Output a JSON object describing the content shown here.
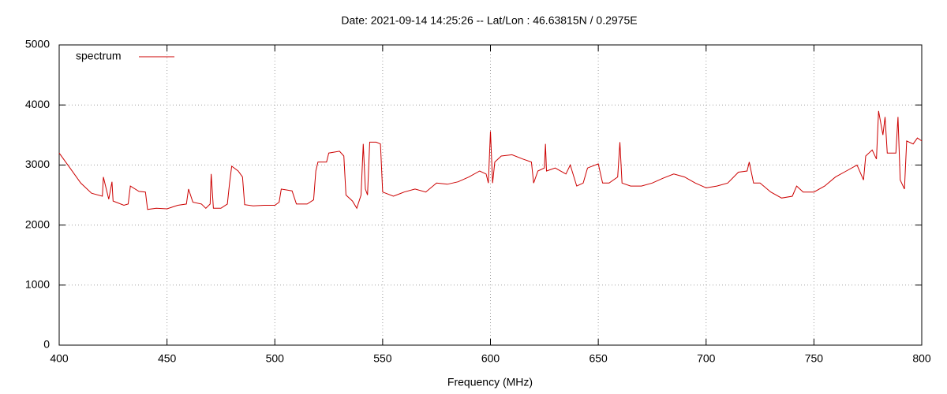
{
  "chart_data": {
    "type": "line",
    "title": "Date: 2021-09-14 14:25:26  --  Lat/Lon : 46.63815N / 0.2975E",
    "x_label": "Frequency (MHz)",
    "x": [
      400,
      405,
      410,
      415,
      420,
      420.5,
      423,
      424.5,
      425,
      430,
      432,
      433,
      437,
      440,
      441,
      445,
      450,
      455,
      459,
      460,
      462,
      466,
      468,
      470,
      470.5,
      471.5,
      475,
      478,
      479,
      480,
      483,
      485,
      486,
      490,
      495,
      500,
      502,
      503,
      508,
      510,
      515,
      518,
      519,
      520,
      524,
      525,
      530,
      532,
      533,
      536,
      538,
      540,
      541,
      542,
      543,
      544,
      547,
      549,
      550,
      555,
      560,
      565,
      570,
      575,
      580,
      585,
      590,
      595,
      598,
      599,
      600,
      601,
      602,
      605,
      610,
      615,
      619,
      620,
      622,
      625,
      625.5,
      626,
      630,
      635,
      637,
      640,
      643,
      645,
      650,
      652,
      655,
      659,
      660,
      661,
      665,
      670,
      675,
      680,
      685,
      690,
      695,
      700,
      705,
      710,
      715,
      719,
      720,
      722,
      725,
      730,
      735,
      740,
      742,
      745,
      750,
      755,
      760,
      765,
      770,
      773,
      774,
      777,
      779,
      780,
      782,
      783,
      784,
      788,
      789,
      790,
      792,
      793,
      796,
      798,
      800
    ],
    "series": [
      {
        "name": "spectrum",
        "color": "#cc0000",
        "values": [
          3200,
          2950,
          2700,
          2530,
          2480,
          2800,
          2430,
          2720,
          2400,
          2330,
          2350,
          2650,
          2560,
          2550,
          2260,
          2280,
          2270,
          2330,
          2350,
          2600,
          2380,
          2350,
          2280,
          2350,
          2850,
          2280,
          2280,
          2350,
          2700,
          2980,
          2900,
          2800,
          2340,
          2320,
          2330,
          2330,
          2380,
          2600,
          2570,
          2350,
          2350,
          2420,
          2900,
          3050,
          3050,
          3200,
          3230,
          3150,
          2500,
          2400,
          2280,
          2500,
          3350,
          2600,
          2500,
          3380,
          3380,
          3350,
          2550,
          2480,
          2550,
          2600,
          2550,
          2700,
          2680,
          2720,
          2800,
          2900,
          2850,
          2700,
          3560,
          2700,
          3050,
          3150,
          3170,
          3100,
          3050,
          2700,
          2900,
          2950,
          3350,
          2900,
          2950,
          2850,
          3000,
          2650,
          2700,
          2950,
          3020,
          2700,
          2700,
          2800,
          3380,
          2700,
          2650,
          2650,
          2700,
          2780,
          2850,
          2800,
          2700,
          2620,
          2650,
          2700,
          2880,
          2900,
          3050,
          2700,
          2700,
          2550,
          2450,
          2480,
          2650,
          2550,
          2550,
          2650,
          2800,
          2900,
          3000,
          2750,
          3150,
          3250,
          3100,
          3900,
          3500,
          3800,
          3200,
          3200,
          3800,
          2750,
          2600,
          3400,
          3350,
          3450,
          3400
        ]
      }
    ],
    "xlim": [
      400,
      800
    ],
    "xticks": [
      400,
      450,
      500,
      550,
      600,
      650,
      700,
      750,
      800
    ],
    "ylim": [
      0,
      5000
    ],
    "yticks": [
      0,
      1000,
      2000,
      3000,
      4000,
      5000
    ],
    "grid": true,
    "legend": "top-left"
  }
}
